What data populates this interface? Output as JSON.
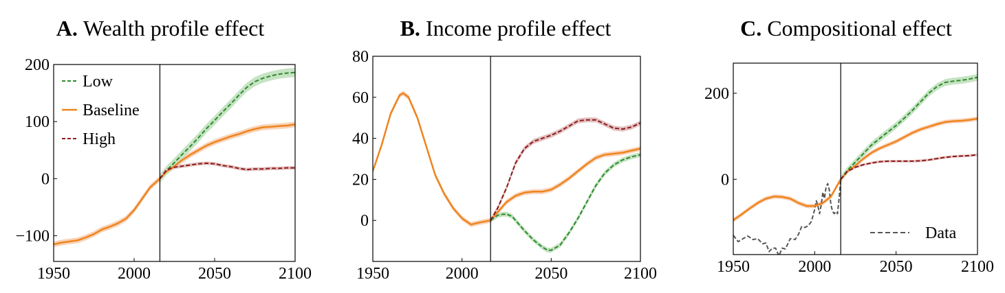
{
  "colors": {
    "low": "#2a8a2a",
    "baseline": "#f0831e",
    "high": "#8b1a1a",
    "data": "#555555",
    "low_band": "#c6e3c3",
    "baseline_band": "#f8d3b8",
    "high_band": "#e3c0c0"
  },
  "chart_data": [
    {
      "type": "line",
      "letter": "A.",
      "title": "Wealth profile effect",
      "xlim": [
        1950,
        2100
      ],
      "ylim": [
        -145,
        200
      ],
      "xticks": [
        1950,
        2000,
        2050,
        2100
      ],
      "yticks": [
        -100,
        0,
        100,
        200
      ],
      "xtick_labels": [
        "1950",
        "2000",
        "2050",
        "2100"
      ],
      "ytick_labels": [
        "−100",
        "0",
        "100",
        "200"
      ],
      "vline": 2016,
      "legend": {
        "position": "top-left",
        "entries": [
          {
            "label": "Low",
            "series": "low",
            "dashed": true
          },
          {
            "label": "Baseline",
            "series": "baseline",
            "dashed": false
          },
          {
            "label": "High",
            "series": "high",
            "dashed": true
          }
        ]
      },
      "series": [
        {
          "name": "Baseline",
          "key": "baseline",
          "dashed": false,
          "band": 5,
          "x": [
            1950,
            1955,
            1960,
            1965,
            1970,
            1975,
            1980,
            1985,
            1990,
            1995,
            2000,
            2005,
            2010,
            2016,
            2020,
            2025,
            2030,
            2035,
            2040,
            2045,
            2050,
            2055,
            2060,
            2065,
            2070,
            2075,
            2080,
            2085,
            2090,
            2095,
            2100
          ],
          "y": [
            -115,
            -112,
            -110,
            -108,
            -103,
            -97,
            -89,
            -84,
            -78,
            -70,
            -55,
            -35,
            -15,
            0,
            12,
            22,
            33,
            42,
            50,
            58,
            64,
            69,
            74,
            78,
            83,
            87,
            90,
            91,
            92,
            93,
            95
          ]
        },
        {
          "name": "Low",
          "key": "low",
          "dashed": true,
          "band": 8,
          "x": [
            2016,
            2020,
            2025,
            2030,
            2035,
            2040,
            2045,
            2050,
            2055,
            2060,
            2065,
            2070,
            2075,
            2080,
            2085,
            2090,
            2095,
            2100
          ],
          "y": [
            0,
            14,
            28,
            43,
            57,
            72,
            88,
            102,
            117,
            131,
            146,
            160,
            170,
            176,
            180,
            183,
            185,
            186
          ]
        },
        {
          "name": "High",
          "key": "high",
          "dashed": true,
          "band": 3,
          "x": [
            2016,
            2020,
            2025,
            2030,
            2035,
            2040,
            2045,
            2050,
            2055,
            2060,
            2065,
            2070,
            2075,
            2080,
            2085,
            2090,
            2095,
            2100
          ],
          "y": [
            0,
            15,
            20,
            22,
            24,
            26,
            27,
            26,
            23,
            21,
            18,
            16,
            17,
            17,
            18,
            18,
            19,
            19
          ]
        }
      ]
    },
    {
      "type": "line",
      "letter": "B.",
      "title": "Income profile effect",
      "xlim": [
        1950,
        2100
      ],
      "ylim": [
        -20,
        80
      ],
      "xticks": [
        1950,
        2000,
        2050,
        2100
      ],
      "yticks": [
        0,
        20,
        40,
        60,
        80
      ],
      "xtick_labels": [
        "1950",
        "2000",
        "2050",
        "2100"
      ],
      "ytick_labels": [
        "0",
        "20",
        "40",
        "60",
        "80"
      ],
      "vline": 2016,
      "series": [
        {
          "name": "Baseline",
          "key": "baseline",
          "dashed": false,
          "band": 1.2,
          "x": [
            1950,
            1955,
            1960,
            1965,
            1967,
            1970,
            1975,
            1980,
            1985,
            1990,
            1995,
            2000,
            2005,
            2010,
            2016,
            2020,
            2025,
            2030,
            2035,
            2040,
            2045,
            2050,
            2055,
            2060,
            2065,
            2070,
            2075,
            2080,
            2085,
            2090,
            2095,
            2100
          ],
          "y": [
            24,
            37,
            52,
            61,
            62,
            60,
            50,
            36,
            22,
            13,
            6,
            1,
            -2,
            -1,
            0,
            4,
            9,
            12,
            13.5,
            14,
            14,
            15,
            17.5,
            20.5,
            24,
            27.5,
            30.5,
            32,
            32.5,
            33,
            34,
            35
          ]
        },
        {
          "name": "Low",
          "key": "low",
          "dashed": true,
          "band": 1.2,
          "x": [
            2016,
            2020,
            2023,
            2025,
            2028,
            2030,
            2035,
            2040,
            2045,
            2048,
            2050,
            2055,
            2060,
            2065,
            2070,
            2075,
            2080,
            2085,
            2090,
            2095,
            2100
          ],
          "y": [
            0,
            2.5,
            3,
            3,
            2,
            0,
            -5,
            -9.5,
            -13,
            -14.5,
            -14.5,
            -12,
            -6,
            1,
            9,
            17,
            23,
            27,
            29.5,
            31,
            32
          ]
        },
        {
          "name": "High",
          "key": "high",
          "dashed": true,
          "band": 1.2,
          "x": [
            2016,
            2020,
            2025,
            2030,
            2035,
            2040,
            2045,
            2050,
            2055,
            2060,
            2065,
            2070,
            2075,
            2080,
            2085,
            2090,
            2095,
            2100
          ],
          "y": [
            0,
            6,
            16,
            28,
            35,
            38.5,
            40,
            41.5,
            43.5,
            46,
            48.5,
            49,
            49,
            47,
            45,
            44.5,
            45.5,
            47.5
          ]
        }
      ]
    },
    {
      "type": "line",
      "letter": "C.",
      "title": "Compositional effect",
      "xlim": [
        1950,
        2100
      ],
      "ylim": [
        -175,
        270
      ],
      "xticks": [
        1950,
        2000,
        2050,
        2100
      ],
      "yticks": [
        0,
        200
      ],
      "xtick_labels": [
        "1950",
        "2000",
        "2050",
        "2100"
      ],
      "ytick_labels": [
        "0",
        "200"
      ],
      "vline": 2016,
      "legend": {
        "position": "bottom-right",
        "entries": [
          {
            "label": "Data",
            "series": "data",
            "dashed": true
          }
        ]
      },
      "series": [
        {
          "name": "Baseline",
          "key": "baseline",
          "dashed": false,
          "band": 5,
          "x": [
            1950,
            1955,
            1960,
            1965,
            1970,
            1975,
            1980,
            1985,
            1990,
            1995,
            2000,
            2005,
            2010,
            2016,
            2020,
            2025,
            2030,
            2035,
            2040,
            2045,
            2050,
            2055,
            2060,
            2065,
            2070,
            2075,
            2080,
            2085,
            2090,
            2095,
            2100
          ],
          "y": [
            -95,
            -82,
            -68,
            -55,
            -45,
            -40,
            -41,
            -45,
            -55,
            -62,
            -62,
            -55,
            -40,
            0,
            18,
            32,
            48,
            62,
            72,
            80,
            88,
            98,
            108,
            116,
            122,
            128,
            133,
            135,
            136,
            138,
            141
          ]
        },
        {
          "name": "Low",
          "key": "low",
          "dashed": true,
          "band": 8,
          "x": [
            2016,
            2020,
            2025,
            2030,
            2035,
            2040,
            2045,
            2050,
            2055,
            2060,
            2065,
            2070,
            2075,
            2080,
            2085,
            2090,
            2095,
            2100
          ],
          "y": [
            0,
            20,
            40,
            60,
            80,
            95,
            110,
            125,
            142,
            160,
            180,
            200,
            215,
            225,
            228,
            230,
            233,
            237
          ]
        },
        {
          "name": "High",
          "key": "high",
          "dashed": true,
          "band": 3,
          "x": [
            2016,
            2020,
            2025,
            2030,
            2035,
            2040,
            2045,
            2050,
            2055,
            2060,
            2065,
            2070,
            2075,
            2080,
            2085,
            2090,
            2095,
            2100
          ],
          "y": [
            0,
            18,
            28,
            34,
            38,
            41,
            42,
            42,
            42,
            42,
            43,
            45,
            48,
            51,
            53,
            54,
            55,
            57
          ]
        },
        {
          "name": "Data",
          "key": "data",
          "dashed": true,
          "band": 0,
          "x": [
            1950,
            1953,
            1956,
            1959,
            1962,
            1965,
            1968,
            1970,
            1972,
            1974,
            1976,
            1978,
            1980,
            1982,
            1985,
            1988,
            1990,
            1992,
            1994,
            1996,
            1998,
            2000,
            2001,
            2002,
            2003,
            2004,
            2005,
            2006,
            2007,
            2008,
            2009,
            2010,
            2011,
            2012,
            2013,
            2014,
            2015,
            2016
          ],
          "y": [
            -130,
            -145,
            -138,
            -132,
            -140,
            -138,
            -150,
            -148,
            -168,
            -160,
            -160,
            -178,
            -160,
            -162,
            -138,
            -140,
            -128,
            -110,
            -112,
            -108,
            -98,
            -70,
            -50,
            -62,
            -80,
            -60,
            -30,
            -45,
            -18,
            -10,
            -25,
            -60,
            -75,
            -80,
            -75,
            -80,
            -45,
            0
          ]
        }
      ]
    }
  ]
}
